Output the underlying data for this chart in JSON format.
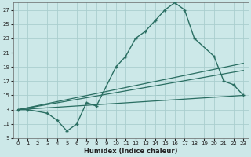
{
  "xlabel": "Humidex (Indice chaleur)",
  "bg_color": "#cce8e8",
  "grid_color": "#aacece",
  "line_color": "#2a6e62",
  "xlim": [
    -0.5,
    23.5
  ],
  "ylim": [
    9,
    28
  ],
  "yticks": [
    9,
    11,
    13,
    15,
    17,
    19,
    21,
    23,
    25,
    27
  ],
  "xticks": [
    0,
    1,
    2,
    3,
    4,
    5,
    6,
    7,
    8,
    9,
    10,
    11,
    12,
    13,
    14,
    15,
    16,
    17,
    18,
    19,
    20,
    21,
    22,
    23
  ],
  "curve_x": [
    0,
    1,
    3,
    4,
    5,
    6,
    7,
    8,
    10,
    11,
    12,
    13,
    14,
    15,
    16,
    17,
    18,
    20,
    21,
    22,
    23
  ],
  "curve_y": [
    13,
    13,
    12.5,
    11.5,
    10,
    11,
    14,
    13.5,
    19,
    20.5,
    23,
    24,
    25.5,
    27,
    28,
    27,
    23,
    20.5,
    17,
    16.5,
    15
  ],
  "line1_x": [
    0,
    23
  ],
  "line1_y": [
    13,
    19.5
  ],
  "line2_x": [
    0,
    23
  ],
  "line2_y": [
    13,
    18.5
  ],
  "line3_x": [
    0,
    23
  ],
  "line3_y": [
    13,
    15
  ]
}
